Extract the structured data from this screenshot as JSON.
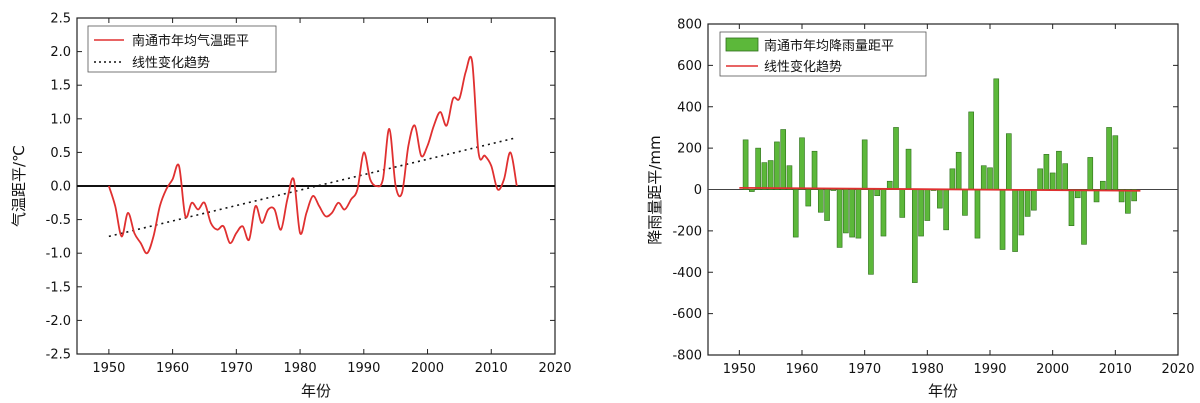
{
  "chart_data": [
    {
      "type": "line",
      "xlim": [
        1945,
        2020
      ],
      "ylim": [
        -2.5,
        2.5
      ],
      "xticks": [
        1950,
        1960,
        1970,
        1980,
        1990,
        2000,
        2010,
        2020
      ],
      "yticks": [
        -2.5,
        -2.0,
        -1.5,
        -1.0,
        -0.5,
        0.0,
        0.5,
        1.0,
        1.5,
        2.0,
        2.5
      ],
      "xtick_labels": [
        "1950",
        "1960",
        "1970",
        "1980",
        "1990",
        "2000",
        "2010",
        "2020"
      ],
      "ytick_labels": [
        "-2.5",
        "-2.0",
        "-1.5",
        "-1.0",
        "-0.5",
        "0.0",
        "0.5",
        "1.0",
        "1.5",
        "2.0",
        "2.5"
      ],
      "xlabel": "年份",
      "ylabel": "气温距平/℃",
      "legend": [
        "南通市年均气温距平",
        "线性变化趋势"
      ],
      "legend_position": "top-left",
      "zero_line": true,
      "series": [
        {
          "name": "南通市年均气温距平",
          "style": "solid",
          "color": "#e03030",
          "x": [
            1950,
            1951,
            1952,
            1953,
            1954,
            1955,
            1956,
            1957,
            1958,
            1959,
            1960,
            1961,
            1962,
            1963,
            1964,
            1965,
            1966,
            1967,
            1968,
            1969,
            1970,
            1971,
            1972,
            1973,
            1974,
            1975,
            1976,
            1977,
            1978,
            1979,
            1980,
            1981,
            1982,
            1983,
            1984,
            1985,
            1986,
            1987,
            1988,
            1989,
            1990,
            1991,
            1992,
            1993,
            1994,
            1995,
            1996,
            1997,
            1998,
            1999,
            2000,
            2001,
            2002,
            2003,
            2004,
            2005,
            2006,
            2007,
            2008,
            2009,
            2010,
            2011,
            2012,
            2013,
            2014
          ],
          "y": [
            0.0,
            -0.3,
            -0.75,
            -0.4,
            -0.7,
            -0.85,
            -1.0,
            -0.75,
            -0.3,
            -0.05,
            0.1,
            0.3,
            -0.45,
            -0.25,
            -0.35,
            -0.25,
            -0.55,
            -0.65,
            -0.6,
            -0.85,
            -0.7,
            -0.6,
            -0.8,
            -0.3,
            -0.55,
            -0.35,
            -0.35,
            -0.65,
            -0.2,
            0.1,
            -0.7,
            -0.4,
            -0.15,
            -0.3,
            -0.45,
            -0.4,
            -0.25,
            -0.35,
            -0.2,
            -0.05,
            0.5,
            0.1,
            0.0,
            0.1,
            0.85,
            0.0,
            -0.1,
            0.6,
            0.9,
            0.45,
            0.6,
            0.9,
            1.1,
            0.9,
            1.3,
            1.3,
            1.7,
            1.85,
            0.5,
            0.45,
            0.3,
            -0.05,
            0.1,
            0.5,
            0.0
          ]
        },
        {
          "name": "线性变化趋势",
          "style": "dotted",
          "color": "#111111",
          "x": [
            1950,
            2014
          ],
          "y": [
            -0.75,
            0.72
          ]
        }
      ]
    },
    {
      "type": "bar",
      "xlim": [
        1945,
        2020
      ],
      "ylim": [
        -800,
        800
      ],
      "xticks": [
        1950,
        1960,
        1970,
        1980,
        1990,
        2000,
        2010,
        2020
      ],
      "yticks": [
        -800,
        -600,
        -400,
        -200,
        0,
        200,
        400,
        600,
        800
      ],
      "xtick_labels": [
        "1950",
        "1960",
        "1970",
        "1980",
        "1990",
        "2000",
        "2010",
        "2020"
      ],
      "ytick_labels": [
        "-800",
        "-600",
        "-400",
        "-200",
        "0",
        "200",
        "400",
        "600",
        "800"
      ],
      "xlabel": "年份",
      "ylabel": "降雨量距平/mm",
      "legend": [
        "南通市年均降雨量距平",
        "线性变化趋势"
      ],
      "legend_position": "top-left",
      "zero_line": true,
      "series": [
        {
          "name": "南通市年均降雨量距平",
          "color": "#5cb83a",
          "x": [
            1951,
            1952,
            1953,
            1954,
            1955,
            1956,
            1957,
            1958,
            1959,
            1960,
            1961,
            1962,
            1963,
            1964,
            1965,
            1966,
            1967,
            1968,
            1969,
            1970,
            1971,
            1972,
            1973,
            1974,
            1975,
            1976,
            1977,
            1978,
            1979,
            1980,
            1981,
            1982,
            1983,
            1984,
            1985,
            1986,
            1987,
            1988,
            1989,
            1990,
            1991,
            1992,
            1993,
            1994,
            1995,
            1996,
            1997,
            1998,
            1999,
            2000,
            2001,
            2002,
            2003,
            2004,
            2005,
            2006,
            2007,
            2008,
            2009,
            2010,
            2011,
            2012,
            2013
          ],
          "y": [
            240,
            -10,
            200,
            130,
            140,
            230,
            290,
            115,
            -230,
            250,
            -80,
            185,
            -110,
            -150,
            -5,
            -280,
            -210,
            -230,
            -235,
            240,
            -410,
            -30,
            -225,
            40,
            300,
            -135,
            195,
            -450,
            -225,
            -150,
            -5,
            -90,
            -195,
            100,
            180,
            -125,
            375,
            -235,
            115,
            105,
            535,
            -290,
            270,
            -300,
            -220,
            -130,
            -100,
            100,
            170,
            80,
            185,
            125,
            -175,
            -40,
            -265,
            155,
            -60,
            40,
            300,
            260,
            -60,
            -115,
            -55
          ]
        },
        {
          "name": "线性变化趋势",
          "style": "solid",
          "color": "#e03030",
          "x": [
            1950,
            2014
          ],
          "y": [
            8,
            -6
          ]
        }
      ]
    }
  ]
}
